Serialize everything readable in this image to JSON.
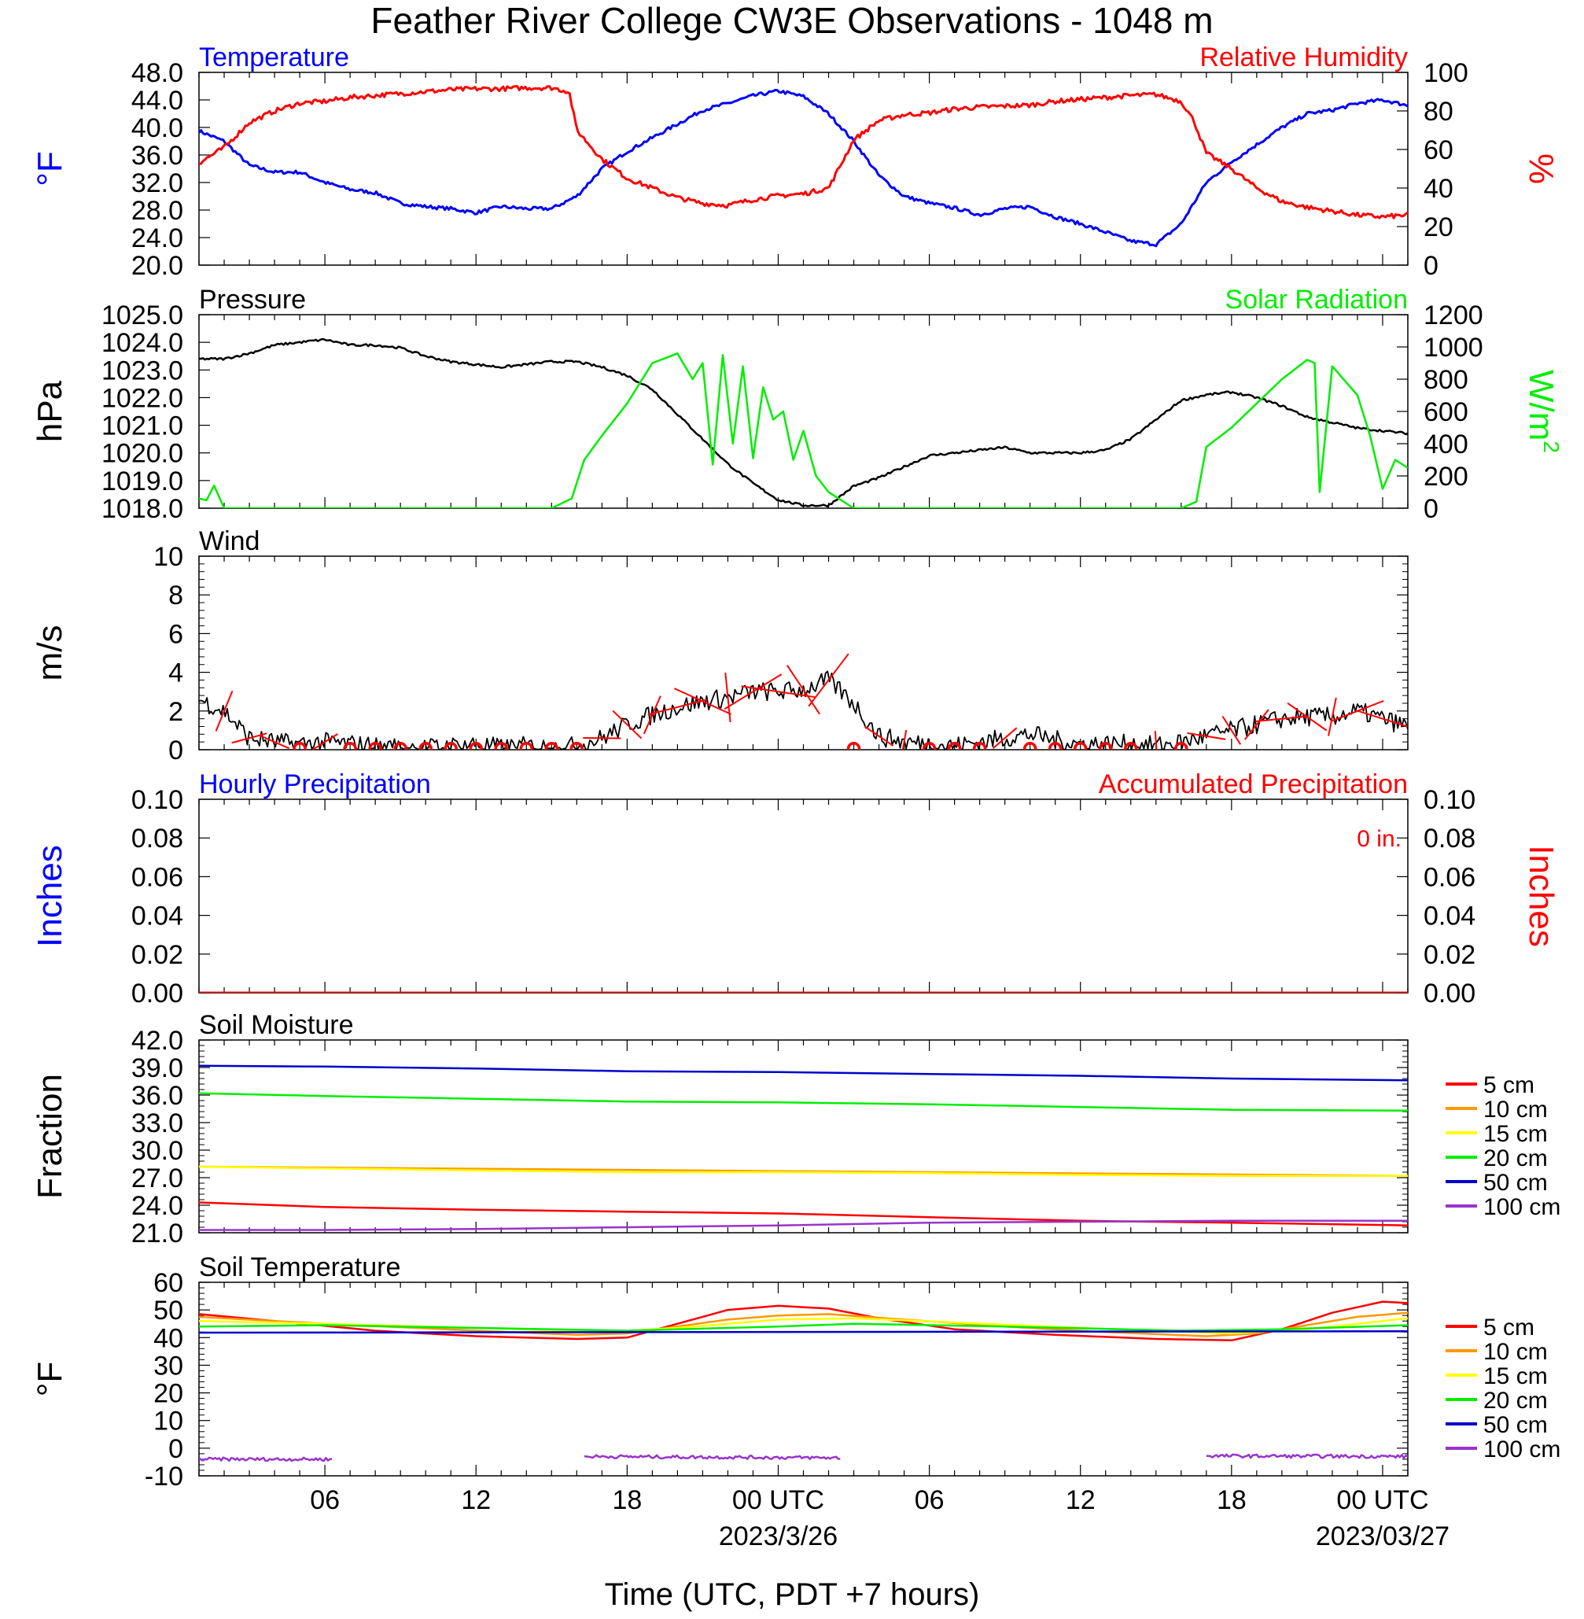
{
  "title": "Feather River College CW3E Observations - 1048 m",
  "x_axis": {
    "label": "Time (UTC, PDT +7 hours)",
    "ticks": [
      "06",
      "12",
      "18",
      "00 UTC",
      "06",
      "12",
      "18",
      "00 UTC"
    ],
    "tick_hours": [
      6,
      12,
      18,
      24,
      30,
      36,
      42,
      48
    ],
    "dates": [
      {
        "text": "2023/3/26",
        "hour": 24
      },
      {
        "text": "2023/03/27",
        "hour": 48
      }
    ],
    "range_hours": [
      1,
      49
    ]
  },
  "colors": {
    "temperature": "#0000ff",
    "humidity": "#ff0000",
    "pressure": "#000000",
    "solar": "#00ee00",
    "wind": "#000000",
    "wind_barb": "#ff0000",
    "precip_hourly": "#0000ff",
    "precip_accum": "#ff0000",
    "depth_5": "#ff0000",
    "depth_10": "#ff9900",
    "depth_15": "#ffff00",
    "depth_20": "#00ee00",
    "depth_50": "#0000cc",
    "depth_100": "#9933cc"
  },
  "chart_data": [
    {
      "id": "temp_rh",
      "type": "line",
      "title_left": "Temperature",
      "title_right": "Relative Humidity",
      "ylabel_left": "°F",
      "ylabel_right": "%",
      "ylim_left": [
        20,
        48
      ],
      "ylim_right": [
        0,
        100
      ],
      "yticks_left": [
        "20.0",
        "24.0",
        "28.0",
        "32.0",
        "36.0",
        "40.0",
        "44.0",
        "48.0"
      ],
      "yticks_right": [
        "0",
        "20",
        "40",
        "60",
        "80",
        "100"
      ],
      "series": [
        {
          "name": "Temperature",
          "axis": "left",
          "x": [
            1,
            2,
            3,
            4,
            5,
            6,
            7,
            8,
            9,
            10,
            11,
            12,
            13,
            14,
            15,
            16,
            17,
            18,
            19,
            20,
            21,
            22,
            23,
            24,
            25,
            26,
            27,
            28,
            29,
            30,
            31,
            32,
            33,
            34,
            35,
            36,
            37,
            38,
            39,
            40,
            41,
            42,
            43,
            44,
            45,
            46,
            47,
            48,
            49
          ],
          "y": [
            39.5,
            38,
            34.5,
            33.5,
            33.5,
            32,
            31,
            30.5,
            29,
            28.5,
            28.2,
            27.6,
            28.5,
            28.2,
            28.2,
            30,
            34,
            36.5,
            38.5,
            40.5,
            42.5,
            43.5,
            44.6,
            45.3,
            44.5,
            42,
            38,
            33,
            30,
            29,
            28.3,
            27.3,
            28.2,
            28.5,
            27,
            26,
            24.8,
            23.5,
            23,
            26,
            32,
            35,
            37.5,
            40,
            42,
            42.5,
            43.5,
            44,
            43.2
          ]
        },
        {
          "name": "Relative Humidity",
          "axis": "right",
          "x": [
            1,
            2,
            3,
            4,
            5,
            6,
            7,
            8,
            9,
            10,
            11,
            12,
            13,
            14,
            15,
            15.7,
            16,
            17,
            18,
            19,
            20,
            21,
            22,
            23,
            24,
            25,
            26,
            27,
            28,
            29,
            30,
            31,
            32,
            33,
            34,
            35,
            36,
            37,
            38,
            39,
            40,
            40.5,
            41,
            42,
            43,
            44,
            45,
            46,
            47,
            48,
            49
          ],
          "y": [
            53,
            61,
            74,
            80,
            84,
            85,
            87,
            88,
            89,
            90,
            91,
            91.5,
            91.5,
            92,
            92,
            90,
            70,
            55,
            45,
            40,
            35,
            32,
            31,
            34,
            36,
            37,
            40,
            65,
            75,
            78,
            79,
            81,
            82,
            82.5,
            83,
            85,
            86,
            87,
            88,
            88.5,
            85,
            75,
            58,
            50,
            40,
            33,
            30,
            28,
            26,
            25,
            26
          ]
        }
      ]
    },
    {
      "id": "pressure_solar",
      "type": "line",
      "title_left": "Pressure",
      "title_right": "Solar Radiation",
      "ylabel_left": "hPa",
      "ylabel_right": "W/m2",
      "ylabel_right_base": "W/m",
      "ylabel_right_exp": "2",
      "ylim_left": [
        1018,
        1025
      ],
      "ylim_right": [
        0,
        1200
      ],
      "yticks_left": [
        "1018.0",
        "1019.0",
        "1020.0",
        "1021.0",
        "1022.0",
        "1023.0",
        "1024.0",
        "1025.0"
      ],
      "yticks_right": [
        "0",
        "200",
        "400",
        "600",
        "800",
        "1000",
        "1200"
      ],
      "series": [
        {
          "name": "Pressure",
          "axis": "left",
          "x": [
            1,
            2,
            3,
            4,
            5,
            6,
            7,
            8,
            9,
            10,
            11,
            12,
            13,
            14,
            15,
            16,
            17,
            18,
            19,
            20,
            21,
            22,
            23,
            24,
            25,
            26,
            27,
            28,
            29,
            30,
            31,
            32,
            33,
            34,
            35,
            36,
            37,
            38,
            39,
            40,
            41,
            42,
            43,
            44,
            45,
            46,
            47,
            48,
            49
          ],
          "y": [
            1023.4,
            1023.4,
            1023.6,
            1023.9,
            1024.0,
            1024.1,
            1023.9,
            1023.9,
            1023.8,
            1023.5,
            1023.3,
            1023.2,
            1023.1,
            1023.2,
            1023.3,
            1023.3,
            1023.1,
            1022.8,
            1022.3,
            1021.4,
            1020.5,
            1019.6,
            1018.9,
            1018.3,
            1018.1,
            1018.1,
            1018.8,
            1019.1,
            1019.5,
            1019.9,
            1020.0,
            1020.1,
            1020.2,
            1020.0,
            1020.0,
            1020.0,
            1020.1,
            1020.5,
            1021.2,
            1021.9,
            1022.1,
            1022.2,
            1022.0,
            1021.7,
            1021.3,
            1021.1,
            1020.9,
            1020.8,
            1020.7
          ]
        },
        {
          "name": "Solar Radiation",
          "axis": "right",
          "x": [
            1,
            1.3,
            1.6,
            2,
            3,
            10,
            15,
            15.8,
            16.3,
            17,
            18,
            18.6,
            19,
            19.5,
            20,
            20.6,
            21,
            21.4,
            21.8,
            22.2,
            22.6,
            23,
            23.4,
            23.8,
            24.2,
            24.6,
            25,
            25.5,
            26,
            27,
            40,
            40.6,
            41,
            42,
            43,
            44,
            45,
            45.3,
            45.5,
            46,
            47,
            47.5,
            48,
            48.5,
            49
          ],
          "y": [
            60,
            50,
            140,
            0,
            0,
            0,
            0,
            60,
            300,
            450,
            650,
            800,
            900,
            930,
            960,
            800,
            900,
            270,
            950,
            400,
            880,
            310,
            750,
            550,
            600,
            300,
            480,
            200,
            100,
            0,
            0,
            40,
            380,
            500,
            650,
            800,
            920,
            900,
            100,
            880,
            700,
            450,
            120,
            300,
            250
          ]
        }
      ]
    },
    {
      "id": "wind",
      "type": "line",
      "title_left": "Wind",
      "ylabel_left": "m/s",
      "ylim_left": [
        0,
        10
      ],
      "yticks_left": [
        "0",
        "2",
        "4",
        "6",
        "8",
        "10"
      ],
      "series": [
        {
          "name": "Wind",
          "axis": "left",
          "x": [
            1,
            2,
            3,
            4,
            5,
            6,
            7,
            8,
            9,
            10,
            11,
            12,
            13,
            14,
            15,
            16,
            17,
            18,
            19,
            20,
            21,
            22,
            23,
            24,
            25,
            26,
            27,
            28,
            29,
            30,
            31,
            32,
            33,
            34,
            35,
            36,
            37,
            38,
            39,
            40,
            41,
            42,
            43,
            44,
            45,
            46,
            47,
            48,
            49
          ],
          "y": [
            2.6,
            2,
            0.6,
            0.4,
            0.3,
            0.4,
            0.3,
            0.2,
            0.1,
            0.1,
            0.2,
            0.3,
            0.1,
            0.2,
            0.1,
            0.2,
            0.6,
            1.3,
            1.8,
            2.2,
            2.5,
            2.7,
            3.0,
            3.0,
            3.1,
            3.6,
            2.4,
            0.7,
            0.4,
            0.3,
            0.2,
            0.4,
            0.6,
            0.8,
            0.5,
            0.3,
            0.3,
            0.3,
            0.2,
            0.4,
            0.7,
            1.0,
            1.3,
            1.6,
            1.7,
            1.7,
            2.0,
            1.6,
            1.2
          ]
        }
      ],
      "calm_hours": [
        5,
        7,
        8,
        9,
        10,
        11,
        12,
        13,
        14,
        15,
        16,
        27,
        30,
        31,
        32,
        34,
        35,
        36,
        37,
        38,
        40
      ]
    },
    {
      "id": "precip",
      "type": "line",
      "title_left": "Hourly Precipitation",
      "title_right": "Accumulated Precipitation",
      "accumulated_text": "0 in.",
      "ylabel_left": "Inches",
      "ylabel_right": "Inches",
      "ylim_left": [
        0,
        0.1
      ],
      "ylim_right": [
        0,
        0.1
      ],
      "yticks_left": [
        "0.00",
        "0.02",
        "0.04",
        "0.06",
        "0.08",
        "0.10"
      ],
      "yticks_right": [
        "0.00",
        "0.02",
        "0.04",
        "0.06",
        "0.08",
        "0.10"
      ],
      "series": [
        {
          "name": "Hourly Precipitation",
          "axis": "left",
          "x": [
            1,
            49
          ],
          "y": [
            0,
            0
          ]
        },
        {
          "name": "Accumulated Precipitation",
          "axis": "right",
          "x": [
            1,
            49
          ],
          "y": [
            0,
            0
          ]
        }
      ]
    },
    {
      "id": "soil_moisture",
      "type": "line",
      "title_left": "Soil Moisture",
      "ylabel_left": "Fraction",
      "ylim_left": [
        21,
        42
      ],
      "yticks_left": [
        "21.0",
        "24.0",
        "27.0",
        "30.0",
        "33.0",
        "36.0",
        "39.0",
        "42.0"
      ],
      "legend": [
        "5 cm",
        "10 cm",
        "15 cm",
        "20 cm",
        "50 cm",
        "100 cm"
      ],
      "series": [
        {
          "name": "5 cm",
          "axis": "left",
          "x": [
            1,
            6,
            12,
            18,
            24,
            30,
            36,
            42,
            49
          ],
          "y": [
            24.3,
            23.8,
            23.5,
            23.3,
            23.1,
            22.7,
            22.3,
            22.1,
            21.8
          ]
        },
        {
          "name": "10 cm",
          "axis": "left",
          "x": [
            1,
            49
          ],
          "y": [
            28.2,
            27.2
          ]
        },
        {
          "name": "15 cm",
          "axis": "left",
          "x": [
            1,
            6,
            12,
            18,
            24,
            30,
            36,
            42,
            49
          ],
          "y": [
            28.2,
            28.0,
            27.8,
            27.6,
            27.6,
            27.5,
            27.3,
            27.2,
            27.2
          ]
        },
        {
          "name": "20 cm",
          "axis": "left",
          "x": [
            1,
            6,
            12,
            18,
            24,
            30,
            36,
            42,
            49
          ],
          "y": [
            36.2,
            35.9,
            35.6,
            35.3,
            35.2,
            35.0,
            34.7,
            34.4,
            34.3
          ]
        },
        {
          "name": "50 cm",
          "axis": "left",
          "x": [
            1,
            6,
            12,
            18,
            24,
            30,
            36,
            42,
            49
          ],
          "y": [
            39.2,
            39.1,
            38.9,
            38.6,
            38.5,
            38.3,
            38.1,
            37.8,
            37.6
          ]
        },
        {
          "name": "100 cm",
          "axis": "left",
          "x": [
            1,
            6,
            12,
            18,
            24,
            30,
            36,
            42,
            49
          ],
          "y": [
            21.3,
            21.3,
            21.4,
            21.6,
            21.8,
            22.1,
            22.2,
            22.3,
            22.3
          ]
        }
      ]
    },
    {
      "id": "soil_temp",
      "type": "line",
      "title_left": "Soil Temperature",
      "ylabel_left": "°F",
      "ylim_left": [
        -10,
        60
      ],
      "yticks_left": [
        "-10",
        "0",
        "10",
        "20",
        "30",
        "40",
        "50",
        "60"
      ],
      "legend": [
        "5 cm",
        "10 cm",
        "15 cm",
        "20 cm",
        "50 cm",
        "100 cm"
      ],
      "series": [
        {
          "name": "5 cm",
          "axis": "left",
          "x": [
            1,
            4,
            8,
            12,
            16,
            18,
            20,
            22,
            24,
            26,
            28,
            31,
            35,
            39,
            42,
            44,
            46,
            48,
            49
          ],
          "y": [
            48.5,
            46,
            42.5,
            40.5,
            39.5,
            40,
            45,
            50,
            51.5,
            50.5,
            47,
            43,
            41,
            39.5,
            39,
            43,
            49,
            53,
            52.5
          ]
        },
        {
          "name": "10 cm",
          "axis": "left",
          "x": [
            1,
            6,
            12,
            16,
            18,
            20,
            22,
            24,
            26,
            29,
            33,
            37,
            41,
            43,
            45,
            47,
            49
          ],
          "y": [
            47.5,
            45,
            42.5,
            41,
            41.5,
            44,
            46.5,
            48,
            48.5,
            46.5,
            44,
            42,
            40.5,
            41.5,
            44.5,
            47.5,
            49
          ]
        },
        {
          "name": "15 cm",
          "axis": "left",
          "x": [
            1,
            6,
            12,
            17,
            20,
            24,
            27,
            31,
            36,
            42,
            45,
            47,
            49
          ],
          "y": [
            46,
            45,
            43.5,
            42,
            43.5,
            46.5,
            47,
            45.5,
            43.5,
            41.5,
            43,
            45,
            47
          ]
        },
        {
          "name": "20 cm",
          "axis": "left",
          "x": [
            1,
            6,
            12,
            18,
            24,
            27,
            33,
            40,
            44,
            49
          ],
          "y": [
            44,
            44.5,
            43.5,
            42.5,
            44,
            45,
            44,
            42.5,
            43,
            44.5
          ]
        },
        {
          "name": "50 cm",
          "axis": "left",
          "x": [
            1,
            49
          ],
          "y": [
            41.8,
            42.3
          ]
        },
        {
          "name": "100 cm",
          "axis": "left",
          "segments": [
            {
              "x": [
                1,
                6.3
              ],
              "y": [
                -4,
                -4
              ]
            },
            {
              "x": [
                16.3,
                26.5
              ],
              "y": [
                -3,
                -3.5
              ]
            },
            {
              "x": [
                41,
                49
              ],
              "y": [
                -2.8,
                -3
              ]
            }
          ]
        }
      ]
    }
  ]
}
